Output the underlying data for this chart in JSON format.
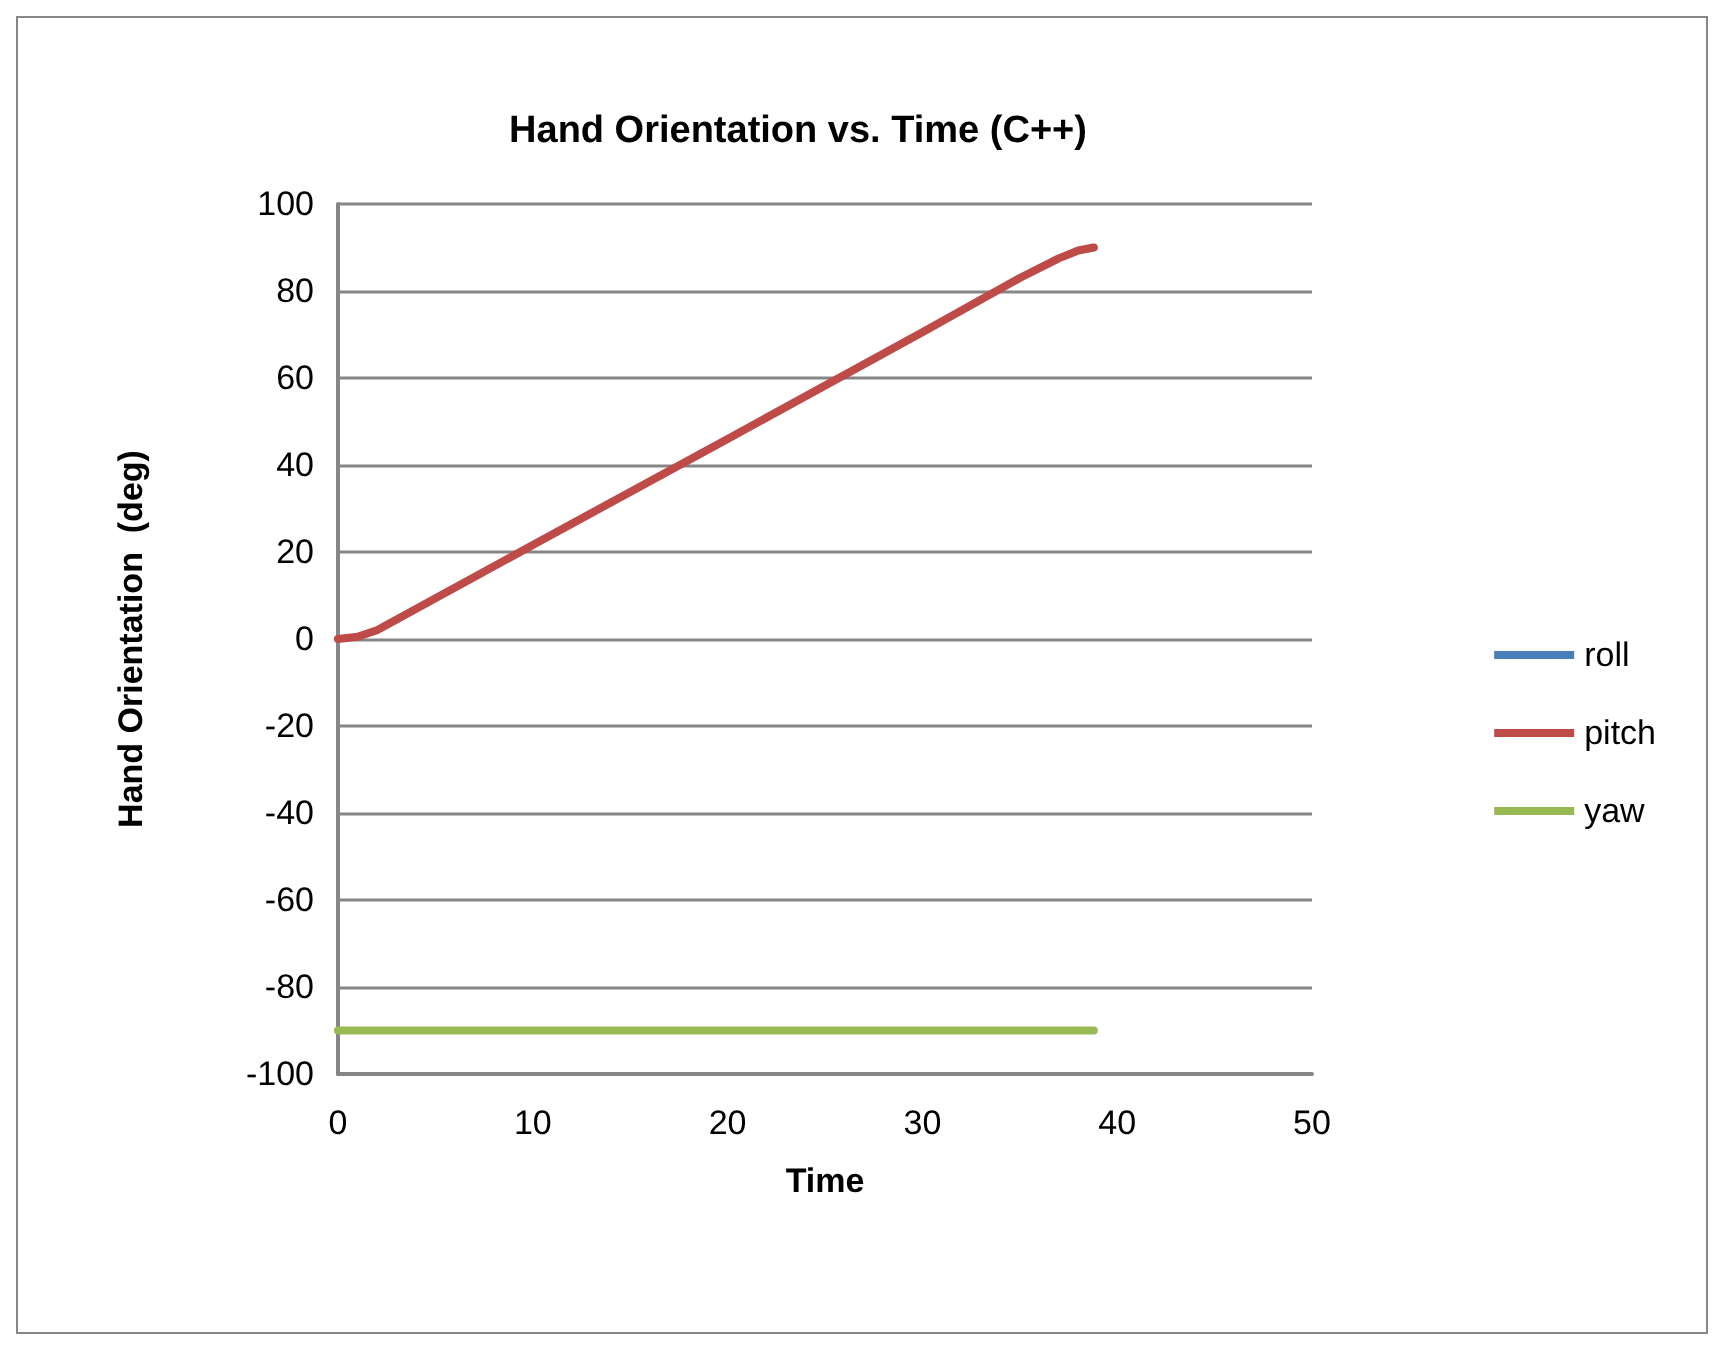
{
  "chart_data": {
    "type": "line",
    "title": "Hand Orientation vs. Time (C++)",
    "xlabel": "Time",
    "ylabel": "Hand Orientation  (deg)",
    "xlim": [
      0,
      50
    ],
    "xticks": [
      0,
      10,
      20,
      30,
      40,
      50
    ],
    "ylim": [
      -100,
      100
    ],
    "yticks": [
      -100,
      -80,
      -60,
      -40,
      -20,
      0,
      20,
      40,
      60,
      80,
      100
    ],
    "grid": "y",
    "legend": "right",
    "marker": "none",
    "line_style": "solid",
    "series": [
      {
        "name": "roll",
        "color": "#4a7ebb"
      },
      {
        "name": "pitch",
        "color": "#be4b48",
        "x": [
          0,
          1,
          2,
          10,
          20,
          30,
          35,
          37,
          38,
          38.8
        ],
        "values": [
          0,
          0.5,
          2,
          21.6,
          46,
          70.5,
          83,
          87.5,
          89.3,
          90
        ]
      },
      {
        "name": "yaw",
        "color": "#98b954",
        "x": [
          0,
          38.8
        ],
        "values": [
          -90,
          -90
        ]
      }
    ]
  }
}
